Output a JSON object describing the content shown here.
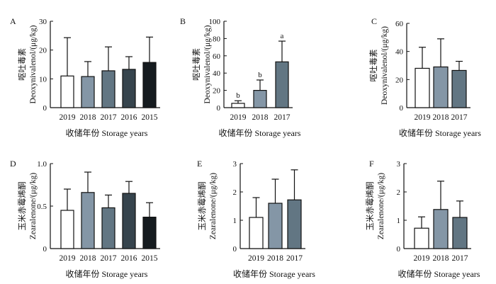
{
  "figure": {
    "x_title": "收储年份 Storage years"
  },
  "chart_data": [
    {
      "panel": "A",
      "type": "bar",
      "ylabel_cn": "呕吐毒素",
      "ylabel_en": "Deoxynivalenol/(μg/kg)",
      "ylim": [
        0,
        30
      ],
      "yticks": [
        "0",
        "10",
        "20",
        "30"
      ],
      "categories": [
        "2019",
        "2018",
        "2017",
        "2016",
        "2015"
      ],
      "values": [
        11,
        10.8,
        12.8,
        13.3,
        15.7
      ],
      "errors": [
        13.3,
        5.2,
        8.3,
        4.4,
        8.8
      ],
      "letters": [],
      "xlabel": "收储年份 Storage years"
    },
    {
      "panel": "B",
      "type": "bar",
      "ylabel_cn": "呕吐毒素",
      "ylabel_en": "Deoxynivalenol/(μg/kg)",
      "ylim": [
        0,
        100
      ],
      "yticks": [
        "0",
        "20",
        "40",
        "60",
        "80",
        "100"
      ],
      "categories": [
        "2019",
        "2018",
        "2017"
      ],
      "values": [
        5,
        20,
        53
      ],
      "errors": [
        3,
        12,
        24
      ],
      "letters": [
        "b",
        "b",
        "a"
      ],
      "xlabel": "收储年份 Storage years"
    },
    {
      "panel": "C",
      "type": "bar",
      "ylabel_cn": "呕吐毒素",
      "ylabel_en": "Deoxynivalenol/(μg/kg)",
      "ylim": [
        0,
        60
      ],
      "yticks": [
        "0",
        "20",
        "40",
        "60"
      ],
      "categories": [
        "2019",
        "2018",
        "2017"
      ],
      "values": [
        28,
        29,
        26.5
      ],
      "errors": [
        15,
        20,
        6.5
      ],
      "letters": [],
      "xlabel": "收储年份 Storage years"
    },
    {
      "panel": "D",
      "type": "bar",
      "ylabel_cn": "玉米赤霉烯酮",
      "ylabel_en": "Zearalenone/(μg/kg)",
      "ylim": [
        0,
        1.0
      ],
      "yticks": [
        "0",
        "0.5",
        "1.0"
      ],
      "categories": [
        "2019",
        "2018",
        "2017",
        "2016",
        "2015"
      ],
      "values": [
        0.45,
        0.66,
        0.48,
        0.65,
        0.37
      ],
      "errors": [
        0.25,
        0.24,
        0.15,
        0.14,
        0.17
      ],
      "letters": [],
      "xlabel": "收储年份 Storage years"
    },
    {
      "panel": "E",
      "type": "bar",
      "ylabel_cn": "玉米赤霉烯酮",
      "ylabel_en": "Zearalenone/(μg/kg)",
      "ylim": [
        0,
        3
      ],
      "yticks": [
        "0",
        "1",
        "2",
        "3"
      ],
      "categories": [
        "2019",
        "2018",
        "2017"
      ],
      "values": [
        1.1,
        1.6,
        1.72
      ],
      "errors": [
        0.7,
        0.85,
        1.06
      ],
      "letters": [],
      "xlabel": "收储年份 Storage years"
    },
    {
      "panel": "F",
      "type": "bar",
      "ylabel_cn": "玉米赤霉烯酮",
      "ylabel_en": "Zearalenone/(μg/kg)",
      "ylim": [
        0,
        3
      ],
      "yticks": [
        "0",
        "1",
        "2",
        "3"
      ],
      "categories": [
        "2019",
        "2018",
        "2017"
      ],
      "values": [
        0.72,
        1.38,
        1.1
      ],
      "errors": [
        0.4,
        1.0,
        0.58
      ],
      "letters": [],
      "xlabel": "收储年份 Storage years"
    }
  ],
  "colors": {
    "2019": "#ffffff",
    "2018": "#8496a6",
    "2017": "#627683",
    "2016": "#36444d",
    "2015": "#151b1f",
    "axis": "#111111"
  }
}
